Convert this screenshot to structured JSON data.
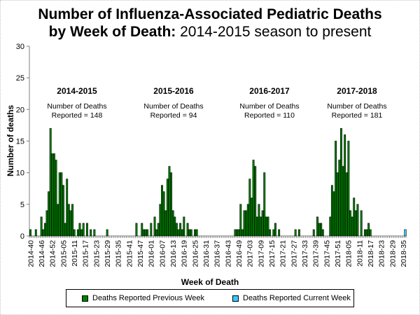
{
  "title": {
    "line1": "Number of Influenza-Associated Pediatric Deaths",
    "line2_bold": "by Week of Death:",
    "line2_rest": " 2014-2015 season to present"
  },
  "colors": {
    "previous": "#008000",
    "current": "#33ccff"
  },
  "chart_data": {
    "type": "bar",
    "title": "Number of Influenza-Associated Pediatric Deaths by Week of Death: 2014-2015 season to present",
    "xlabel": "Week of Death",
    "ylabel": "Number of deaths",
    "ylim": [
      0,
      30
    ],
    "yticks": [
      0,
      5,
      10,
      15,
      20,
      25,
      30
    ],
    "grid": false,
    "legend_position": "bottom",
    "start_week": "2014-40",
    "end_week": "2018-36",
    "weeks_per_year": {
      "2014": 53,
      "2015": 52,
      "2016": 52,
      "2017": 52,
      "2018": 52
    },
    "tick_label_every": 6,
    "seasons": [
      {
        "label": "2014-2015",
        "text1": "Number of Deaths",
        "text2": "Reported = 148"
      },
      {
        "label": "2015-2016",
        "text1": "Number of Deaths",
        "text2": "Reported = 94"
      },
      {
        "label": "2016-2017",
        "text1": "Number of Deaths",
        "text2": "Reported = 110"
      },
      {
        "label": "2017-2018",
        "text1": "Number of Deaths",
        "text2": "Reported = 181"
      }
    ],
    "series": [
      {
        "name": "Deaths Reported Previous Week",
        "values": [
          1,
          0,
          0,
          1,
          0,
          0,
          3,
          1,
          2,
          4,
          7,
          17,
          13,
          13,
          12,
          5,
          10,
          10,
          8,
          2,
          9,
          5,
          4,
          5,
          1,
          0,
          1,
          2,
          1,
          2,
          0,
          2,
          0,
          1,
          0,
          1,
          0,
          0,
          0,
          0,
          0,
          0,
          1,
          0,
          0,
          0,
          0,
          0,
          0,
          0,
          0,
          0,
          0,
          0,
          0,
          0,
          0,
          0,
          2,
          0,
          0,
          2,
          1,
          1,
          1,
          0,
          2,
          0,
          3,
          1,
          2,
          5,
          8,
          7,
          4,
          9,
          11,
          10,
          4,
          3,
          2,
          1,
          2,
          1,
          3,
          0,
          2,
          1,
          1,
          0,
          1,
          1,
          0,
          0,
          0,
          0,
          0,
          0,
          0,
          0,
          0,
          0,
          0,
          0,
          0,
          0,
          0,
          0,
          0,
          0,
          0,
          0,
          1,
          1,
          1,
          5,
          1,
          4,
          4,
          5,
          9,
          6,
          12,
          11,
          3,
          5,
          3,
          4,
          10,
          3,
          3,
          1,
          0,
          1,
          2,
          0,
          1,
          0,
          0,
          0,
          0,
          0,
          0,
          0,
          0,
          1,
          0,
          1,
          0,
          0,
          0,
          0,
          0,
          0,
          0,
          1,
          0,
          3,
          2,
          2,
          1,
          0,
          0,
          0,
          3,
          8,
          7,
          15,
          10,
          12,
          17,
          11,
          16,
          10,
          15,
          4,
          3,
          6,
          4,
          5,
          0,
          4,
          0,
          1,
          1,
          2,
          1,
          0,
          0,
          0,
          0,
          0,
          0,
          0,
          0,
          0,
          0,
          0,
          0,
          0
        ]
      },
      {
        "name": "Deaths Reported Current Week",
        "current_week_value": 1,
        "current_week": "2018-36"
      }
    ]
  },
  "legend": {
    "previous_label": "Deaths Reported Previous Week",
    "current_label": "Deaths Reported Current Week"
  }
}
